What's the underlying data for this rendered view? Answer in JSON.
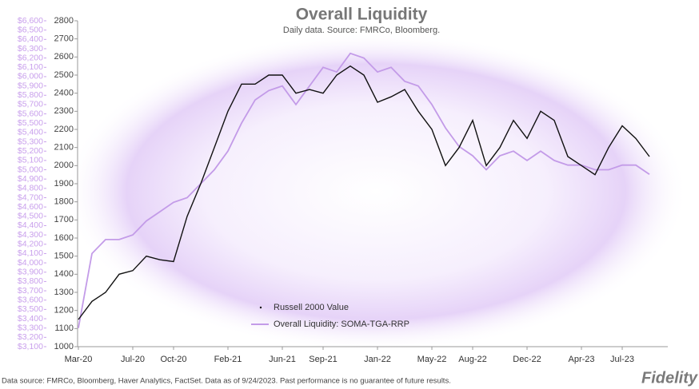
{
  "chart_data": {
    "type": "line",
    "title": "Overall Liquidity",
    "subtitle": "Daily data.  Source: FMRCo, Bloomberg.",
    "categories": [
      "Mar-20",
      null,
      null,
      null,
      "Jul-20",
      null,
      null,
      "Oct-20",
      null,
      null,
      null,
      "Feb-21",
      null,
      null,
      null,
      "Jun-21",
      null,
      null,
      "Sep-21",
      null,
      null,
      null,
      "Jan-22",
      null,
      null,
      null,
      "May-22",
      null,
      null,
      "Aug-22",
      null,
      null,
      null,
      "Dec-22",
      null,
      null,
      null,
      "Apr-23",
      null,
      null,
      "Jul-23",
      null,
      null
    ],
    "series": [
      {
        "name": "Russell 2000 Value",
        "color": "#111111",
        "axis": "y2",
        "values": [
          1150,
          1250,
          1300,
          1400,
          1420,
          1500,
          1480,
          1470,
          1720,
          1900,
          2100,
          2300,
          2450,
          2450,
          2500,
          2500,
          2400,
          2420,
          2400,
          2500,
          2550,
          2500,
          2350,
          2380,
          2420,
          2300,
          2200,
          2000,
          2100,
          2250,
          2000,
          2100,
          2250,
          2150,
          2300,
          2250,
          2050,
          2000,
          1950,
          2100,
          2220,
          2150,
          2050
        ]
      },
      {
        "name": "Overall Liquidity: SOMA-TGA-RRP",
        "color": "#c39be8",
        "values": [
          3300,
          4100,
          4250,
          4250,
          4300,
          4450,
          4550,
          4650,
          4700,
          4850,
          5000,
          5200,
          5500,
          5750,
          5850,
          5900,
          5700,
          5900,
          6100,
          6050,
          6250,
          6200,
          6050,
          6100,
          5950,
          5900,
          5700,
          5450,
          5250,
          5150,
          5000,
          5150,
          5200,
          5100,
          5200,
          5100,
          5050,
          5050,
          5000,
          5000,
          5050,
          5050,
          4950
        ]
      }
    ],
    "ylim": [
      3100,
      6600
    ],
    "yticks": [
      {
        "value": 3100,
        "label": "$3,100"
      },
      {
        "value": 3200,
        "label": "$3,200"
      },
      {
        "value": 3300,
        "label": "$3,300"
      },
      {
        "value": 3400,
        "label": "$3,400"
      },
      {
        "value": 3500,
        "label": "$3,500"
      },
      {
        "value": 3600,
        "label": "$3,600"
      },
      {
        "value": 3700,
        "label": "$3,700"
      },
      {
        "value": 3800,
        "label": "$3,800"
      },
      {
        "value": 3900,
        "label": "$3,900"
      },
      {
        "value": 4000,
        "label": "$4,000"
      },
      {
        "value": 4100,
        "label": "$4,100"
      },
      {
        "value": 4200,
        "label": "$4,200"
      },
      {
        "value": 4300,
        "label": "$4,300"
      },
      {
        "value": 4400,
        "label": "$4,400"
      },
      {
        "value": 4500,
        "label": "$4,500"
      },
      {
        "value": 4600,
        "label": "$4,600"
      },
      {
        "value": 4700,
        "label": "$4,700"
      },
      {
        "value": 4800,
        "label": "$4,800"
      },
      {
        "value": 4900,
        "label": "$4,900"
      },
      {
        "value": 5000,
        "label": "$5,000"
      },
      {
        "value": 5100,
        "label": "$5,100"
      },
      {
        "value": 5200,
        "label": "$5,200"
      },
      {
        "value": 5300,
        "label": "$5,300"
      },
      {
        "value": 5400,
        "label": "$5,400"
      },
      {
        "value": 5500,
        "label": "$5,500"
      },
      {
        "value": 5600,
        "label": "$5,600"
      },
      {
        "value": 5700,
        "label": "$5,700"
      },
      {
        "value": 5800,
        "label": "$5,800"
      },
      {
        "value": 5900,
        "label": "$5,900"
      },
      {
        "value": 6000,
        "label": "$6,000"
      },
      {
        "value": 6100,
        "label": "$6,100"
      },
      {
        "value": 6200,
        "label": "$6,200"
      },
      {
        "value": 6300,
        "label": "$6,300"
      },
      {
        "value": 6400,
        "label": "$6,400"
      },
      {
        "value": 6500,
        "label": "$6,500"
      },
      {
        "value": 6600,
        "label": "$6,600"
      }
    ],
    "y2lim": [
      1000,
      2800
    ],
    "y2ticks": [
      1000,
      1100,
      1200,
      1300,
      1400,
      1500,
      1600,
      1700,
      1800,
      1900,
      2000,
      2100,
      2200,
      2300,
      2400,
      2500,
      2600,
      2700,
      2800
    ],
    "legend": "lower center",
    "footnote": "Data source: FMRCo, Bloomberg, Haver Analytics, FactSet. Data as of 9/24/2023. Past performance is no guarantee of future results.",
    "logo": "Fidelity"
  }
}
